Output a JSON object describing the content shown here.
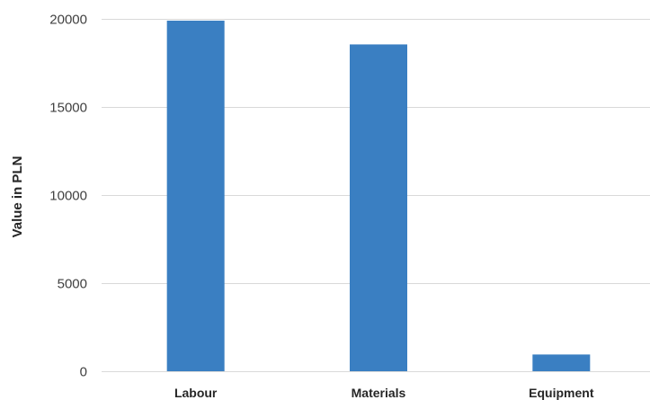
{
  "chart_data": {
    "type": "bar",
    "categories": [
      "Labour",
      "Materials",
      "Equipment"
    ],
    "values": [
      19900,
      18550,
      950
    ],
    "title": "",
    "xlabel": "",
    "ylabel": "Value in PLN",
    "ylim": [
      0,
      20000
    ],
    "yticks": [
      0,
      5000,
      10000,
      15000,
      20000
    ],
    "grid": true,
    "bar_color": "#3a7fc2",
    "legend": "none"
  }
}
